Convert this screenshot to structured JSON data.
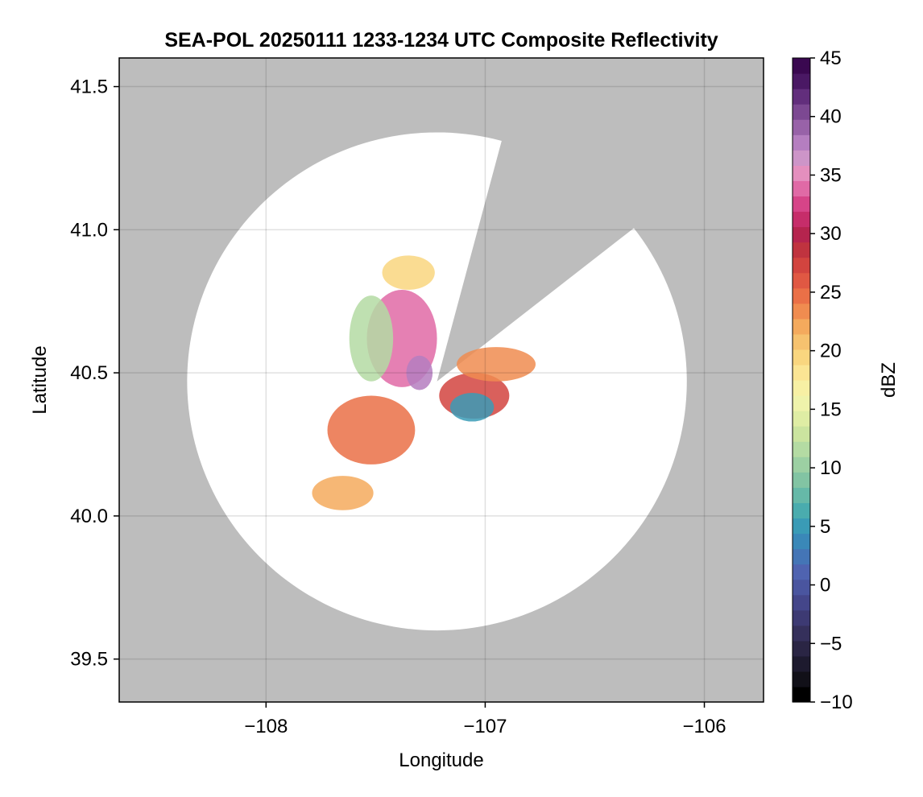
{
  "chart_data": {
    "type": "heatmap",
    "title": "SEA-POL 20250111 1233-1234 UTC Composite Reflectivity",
    "xlabel": "Longitude",
    "ylabel": "Latitude",
    "xlim": [
      -108.67,
      -105.73
    ],
    "ylim": [
      39.35,
      41.6
    ],
    "xticks": [
      -108,
      -107,
      -106
    ],
    "xtick_labels": [
      "−108",
      "−107",
      "−106"
    ],
    "yticks": [
      39.5,
      40.0,
      40.5,
      41.0,
      41.5
    ],
    "ytick_labels": [
      "39.5",
      "40.0",
      "40.5",
      "41.0",
      "41.5"
    ],
    "grid": true,
    "background_color": "#bdbdbd",
    "radar": {
      "center": [
        -107.22,
        40.47
      ],
      "max_range_lon": 1.14,
      "max_range_lat": 0.87,
      "blocked_sector_deg": [
        15,
        52
      ]
    },
    "colorbar": {
      "label": "dBZ",
      "range": [
        -10,
        45
      ],
      "step": 2.5,
      "ticks": [
        -10,
        -5,
        0,
        5,
        10,
        15,
        20,
        25,
        30,
        35,
        40,
        45
      ],
      "tick_labels": [
        "−10",
        "−5",
        "0",
        "5",
        "10",
        "15",
        "20",
        "25",
        "30",
        "35",
        "40",
        "45"
      ],
      "colormap": "Spectral_r",
      "colors": [
        "#000000",
        "#111018",
        "#1d1a2e",
        "#2a2544",
        "#35305b",
        "#3d3a73",
        "#44468a",
        "#4a559f",
        "#4f63b0",
        "#4475b6",
        "#3a88b8",
        "#3a9bb6",
        "#4aacae",
        "#66b9a8",
        "#82c4a3",
        "#9cd0a3",
        "#b4dba3",
        "#cbe49f",
        "#dfeda4",
        "#eff3ab",
        "#f7f0a4",
        "#fbe594",
        "#f9d67f",
        "#f6c26f",
        "#f4aa5d",
        "#f08c50",
        "#ea7047",
        "#e05843",
        "#d2443f",
        "#c0333f",
        "#b5244e",
        "#c62d6a",
        "#d64488",
        "#e06aa6",
        "#e48fbe",
        "#cd95c8",
        "#b57ec0",
        "#9862a8",
        "#7c4892",
        "#622e7c",
        "#4a1864",
        "#3a0850"
      ]
    },
    "echo_zones": [
      {
        "cx": -107.38,
        "cy": 40.62,
        "rx": 0.16,
        "ry": 0.17,
        "dbz": 34,
        "name": "core-north"
      },
      {
        "cx": -107.3,
        "cy": 40.5,
        "rx": 0.06,
        "ry": 0.06,
        "dbz": 38,
        "name": "core-center"
      },
      {
        "cx": -107.52,
        "cy": 40.3,
        "rx": 0.2,
        "ry": 0.12,
        "dbz": 25,
        "name": "band-sw"
      },
      {
        "cx": -107.05,
        "cy": 40.42,
        "rx": 0.16,
        "ry": 0.08,
        "dbz": 27,
        "name": "band-se"
      },
      {
        "cx": -106.95,
        "cy": 40.53,
        "rx": 0.18,
        "ry": 0.06,
        "dbz": 24,
        "name": "band-ne"
      },
      {
        "cx": -107.52,
        "cy": 40.62,
        "rx": 0.1,
        "ry": 0.15,
        "dbz": 12,
        "name": "band-w"
      },
      {
        "cx": -107.06,
        "cy": 40.38,
        "rx": 0.1,
        "ry": 0.05,
        "dbz": 5,
        "name": "low-east"
      },
      {
        "cx": -107.35,
        "cy": 40.85,
        "rx": 0.12,
        "ry": 0.06,
        "dbz": 20,
        "name": "north-edge"
      },
      {
        "cx": -107.65,
        "cy": 40.08,
        "rx": 0.14,
        "ry": 0.06,
        "dbz": 22,
        "name": "south-west"
      }
    ]
  }
}
